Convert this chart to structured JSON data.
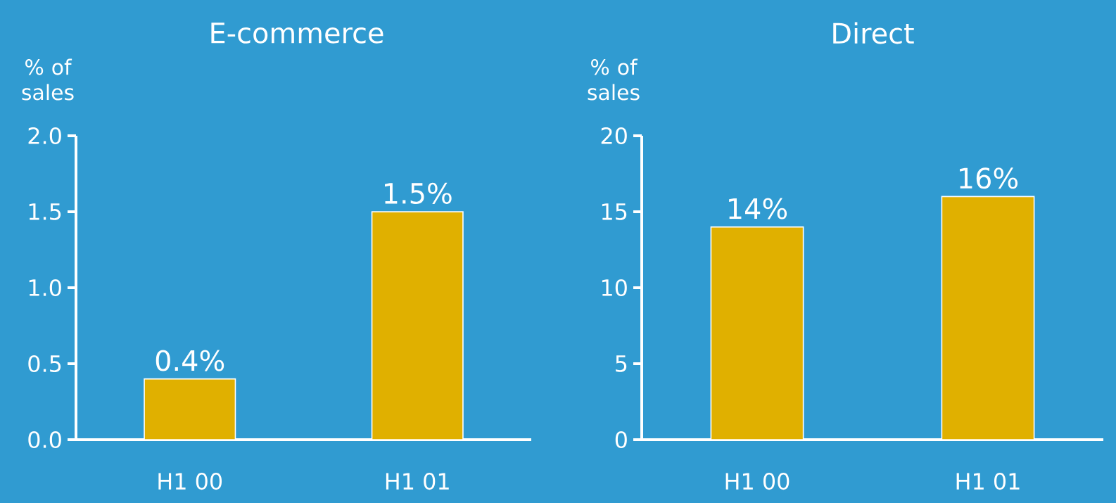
{
  "chart_data": [
    {
      "type": "bar",
      "title": "E-commerce",
      "ylabel": "% of sales",
      "categories": [
        "H1 00",
        "H1 01"
      ],
      "values": [
        0.4,
        1.5
      ],
      "value_labels": [
        "0.4%",
        "1.5%"
      ],
      "color": "#e0b000",
      "ylim": [
        0,
        2
      ],
      "yticks": [
        {
          "value": 0,
          "label": "0.0"
        },
        0.5,
        {
          "value": 1,
          "label": "1.0"
        },
        1.5,
        {
          "value": 2,
          "label": "2.0"
        }
      ]
    },
    {
      "type": "bar",
      "title": "Direct",
      "ylabel": "% of sales",
      "categories": [
        "H1 00",
        "H1 01"
      ],
      "values": [
        14,
        16
      ],
      "value_labels": [
        "14%",
        "16%"
      ],
      "color": "#e0b000",
      "ylim": [
        0,
        20
      ],
      "yticks": [
        0,
        5,
        10,
        15,
        20
      ]
    }
  ]
}
